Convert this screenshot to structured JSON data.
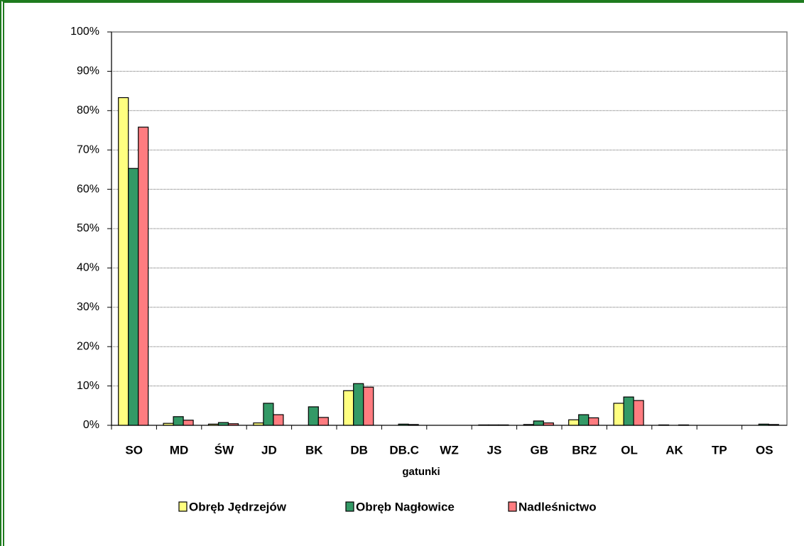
{
  "chart_data": {
    "type": "bar",
    "x_label": "gatunki",
    "categories": [
      "SO",
      "MD",
      "ŚW",
      "JD",
      "BK",
      "DB",
      "DB.C",
      "WZ",
      "JS",
      "GB",
      "BRZ",
      "OL",
      "AK",
      "TP",
      "OS"
    ],
    "series": [
      {
        "name": "Obręb Jędrzejów",
        "color": "#ffff80",
        "values": [
          83.3,
          0.5,
          0.3,
          0.6,
          0,
          8.8,
          0,
          0,
          0.1,
          0.2,
          1.4,
          5.6,
          0.1,
          0,
          0
        ]
      },
      {
        "name": "Obręb Nagłowice",
        "color": "#339966",
        "values": [
          65.3,
          2.2,
          0.7,
          5.6,
          4.7,
          10.6,
          0.3,
          0,
          0.1,
          1.1,
          2.7,
          7.2,
          0,
          0,
          0.3
        ]
      },
      {
        "name": "Nadleśnictwo",
        "color": "#ff7c80",
        "values": [
          75.8,
          1.3,
          0.4,
          2.7,
          2.0,
          9.7,
          0.2,
          0,
          0.1,
          0.6,
          1.9,
          6.3,
          0.1,
          0,
          0.2
        ]
      }
    ],
    "ylim": [
      0,
      100
    ],
    "yticks": [
      {
        "value": 0,
        "label": "0%"
      },
      {
        "value": 10,
        "label": "10%"
      },
      {
        "value": 20,
        "label": "20%"
      },
      {
        "value": 30,
        "label": "30%"
      },
      {
        "value": 40,
        "label": "40%"
      },
      {
        "value": 50,
        "label": "50%"
      },
      {
        "value": 60,
        "label": "60%"
      },
      {
        "value": 70,
        "label": "70%"
      },
      {
        "value": 80,
        "label": "80%"
      },
      {
        "value": 90,
        "label": "90%"
      },
      {
        "value": 100,
        "label": "100%"
      }
    ],
    "grid": true,
    "legend": "bottom"
  }
}
